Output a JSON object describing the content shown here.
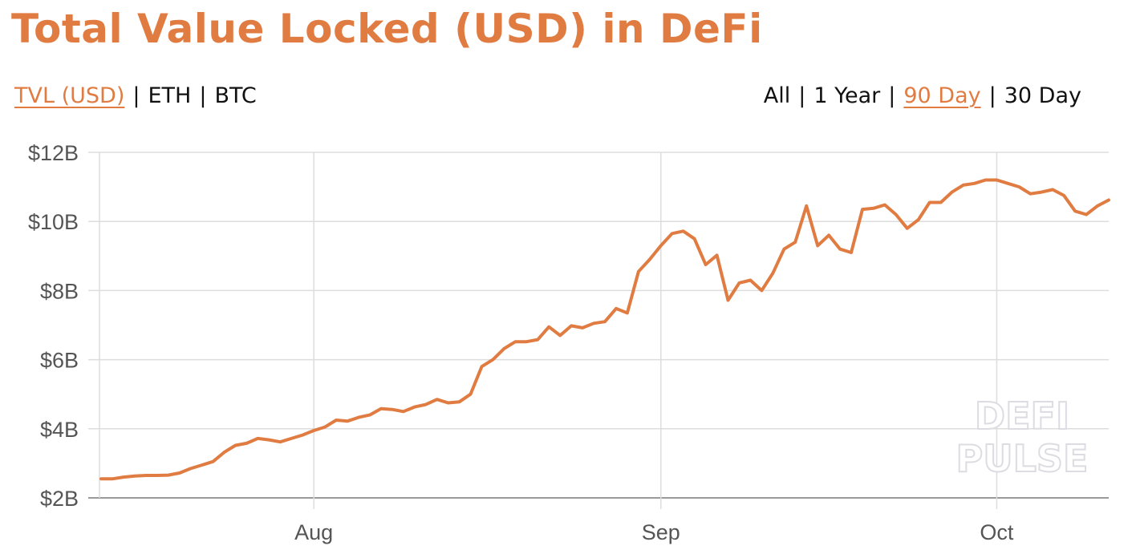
{
  "title": "Total Value Locked (USD) in DeFi",
  "metric_tabs": [
    {
      "label": "TVL (USD)",
      "active": true
    },
    {
      "label": "ETH",
      "active": false
    },
    {
      "label": "BTC",
      "active": false
    }
  ],
  "range_tabs": [
    {
      "label": "All",
      "active": false
    },
    {
      "label": "1 Year",
      "active": false
    },
    {
      "label": "90 Day",
      "active": true
    },
    {
      "label": "30 Day",
      "active": false
    }
  ],
  "separator": "|",
  "watermark": {
    "line1": "DEFI",
    "line2": "PULSE"
  },
  "colors": {
    "accent": "#e07c42",
    "grid": "#dddddd",
    "axis": "#555555",
    "watermark": "#e6e6ea"
  },
  "chart_data": {
    "type": "line",
    "title": "Total Value Locked (USD) in DeFi",
    "xlabel": "",
    "ylabel": "",
    "ylim": [
      2,
      12
    ],
    "y_ticks": [
      {
        "value": 2,
        "label": "$2B"
      },
      {
        "value": 4,
        "label": "$4B"
      },
      {
        "value": 6,
        "label": "$6B"
      },
      {
        "value": 8,
        "label": "$8B"
      },
      {
        "value": 10,
        "label": "$10B"
      },
      {
        "value": 12,
        "label": "$12B"
      }
    ],
    "x_ticks": [
      {
        "index": 19,
        "label": "Aug"
      },
      {
        "index": 50,
        "label": "Sep"
      },
      {
        "index": 80,
        "label": "Oct"
      }
    ],
    "grid": true,
    "series": [
      {
        "values": [
          2.55,
          2.55,
          2.6,
          2.63,
          2.65,
          2.65,
          2.66,
          2.72,
          2.85,
          2.95,
          3.05,
          3.32,
          3.52,
          3.58,
          3.72,
          3.68,
          3.62,
          3.72,
          3.82,
          3.95,
          4.05,
          4.25,
          4.22,
          4.33,
          4.4,
          4.58,
          4.56,
          4.5,
          4.63,
          4.7,
          4.85,
          4.75,
          4.78,
          5.0,
          5.8,
          6.0,
          6.32,
          6.52,
          6.52,
          6.58,
          6.95,
          6.7,
          6.98,
          6.92,
          7.05,
          7.1,
          7.48,
          7.35,
          8.55,
          8.9,
          9.3,
          9.65,
          9.72,
          9.5,
          8.75,
          9.02,
          7.72,
          8.22,
          8.3,
          8.0,
          8.5,
          9.2,
          9.4,
          10.45,
          9.3,
          9.6,
          9.2,
          9.1,
          10.35,
          10.38,
          10.48,
          10.2,
          9.8,
          10.05,
          10.55,
          10.55,
          10.85,
          11.05,
          11.1,
          11.2,
          11.2,
          11.1,
          11.0,
          10.8,
          10.85,
          10.92,
          10.75,
          10.3,
          10.2,
          10.45,
          10.62
        ]
      }
    ]
  }
}
